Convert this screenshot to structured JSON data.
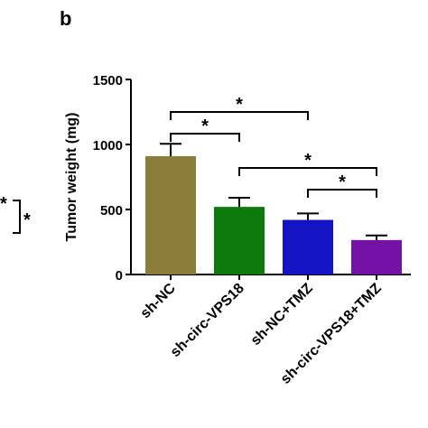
{
  "panel_label": "b",
  "left_panel_stars": [
    "*",
    "*"
  ],
  "chart_data": {
    "type": "bar",
    "y_label": "Tumor weight (mg)",
    "categories": [
      "sh-NC",
      "sh-circ-VPS18",
      "sh-NC+TMZ",
      "sh-circ-VPS18+TMZ"
    ],
    "values": [
      910,
      520,
      420,
      265
    ],
    "errors": [
      95,
      70,
      50,
      35
    ],
    "colors": [
      "#8b7d3a",
      "#0e7a0e",
      "#1414c4",
      "#7412a6"
    ],
    "ylim": [
      0,
      1500
    ],
    "yticks": [
      0,
      500,
      1000,
      1500
    ],
    "significance": [
      {
        "from": 0,
        "to": 1,
        "label": "*"
      },
      {
        "from": 0,
        "to": 2,
        "label": "*"
      },
      {
        "from": 1,
        "to": 3,
        "label": "*"
      },
      {
        "from": 2,
        "to": 3,
        "label": "*"
      }
    ]
  }
}
